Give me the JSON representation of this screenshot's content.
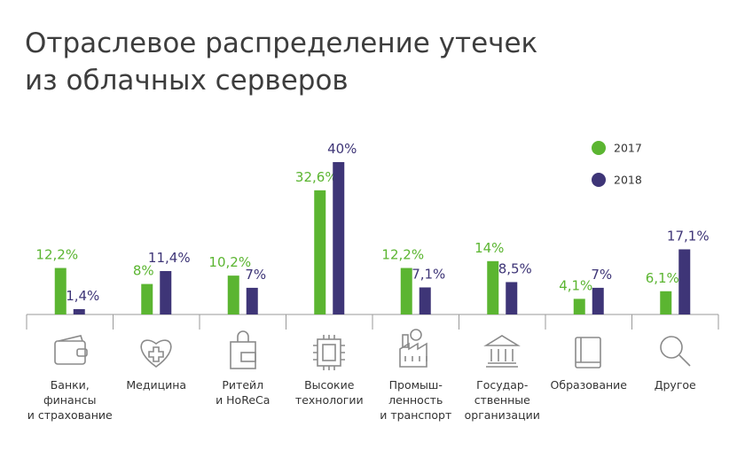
{
  "chart_data": {
    "type": "bar",
    "title": "Отраслевое распределение утечек\nиз облачных серверов",
    "categories": [
      "Банки,\nфинансы\nи страхование",
      "Медицина",
      "Ритейл\nи HoReCa",
      "Высокие\nтехнологии",
      "Промыш-\nленность\nи транспорт",
      "Государ-\nственные\nорганизации",
      "Образование",
      "Другое"
    ],
    "series": [
      {
        "name": "2017",
        "color": "#5bb531",
        "values": [
          12.2,
          8,
          10.2,
          32.6,
          12.2,
          14,
          4.1,
          6.1
        ],
        "value_labels": [
          "12,2%",
          "8%",
          "10,2%",
          "32,6%",
          "12,2%",
          "14%",
          "4,1%",
          "6,1%"
        ]
      },
      {
        "name": "2018",
        "color": "#3e3577",
        "values": [
          1.4,
          11.4,
          7,
          40,
          7.1,
          8.5,
          7,
          17.1
        ],
        "value_labels": [
          "1,4%",
          "11,4%",
          "7%",
          "40%",
          "7,1%",
          "8,5%",
          "7%",
          "17,1%"
        ]
      }
    ]
  }
}
